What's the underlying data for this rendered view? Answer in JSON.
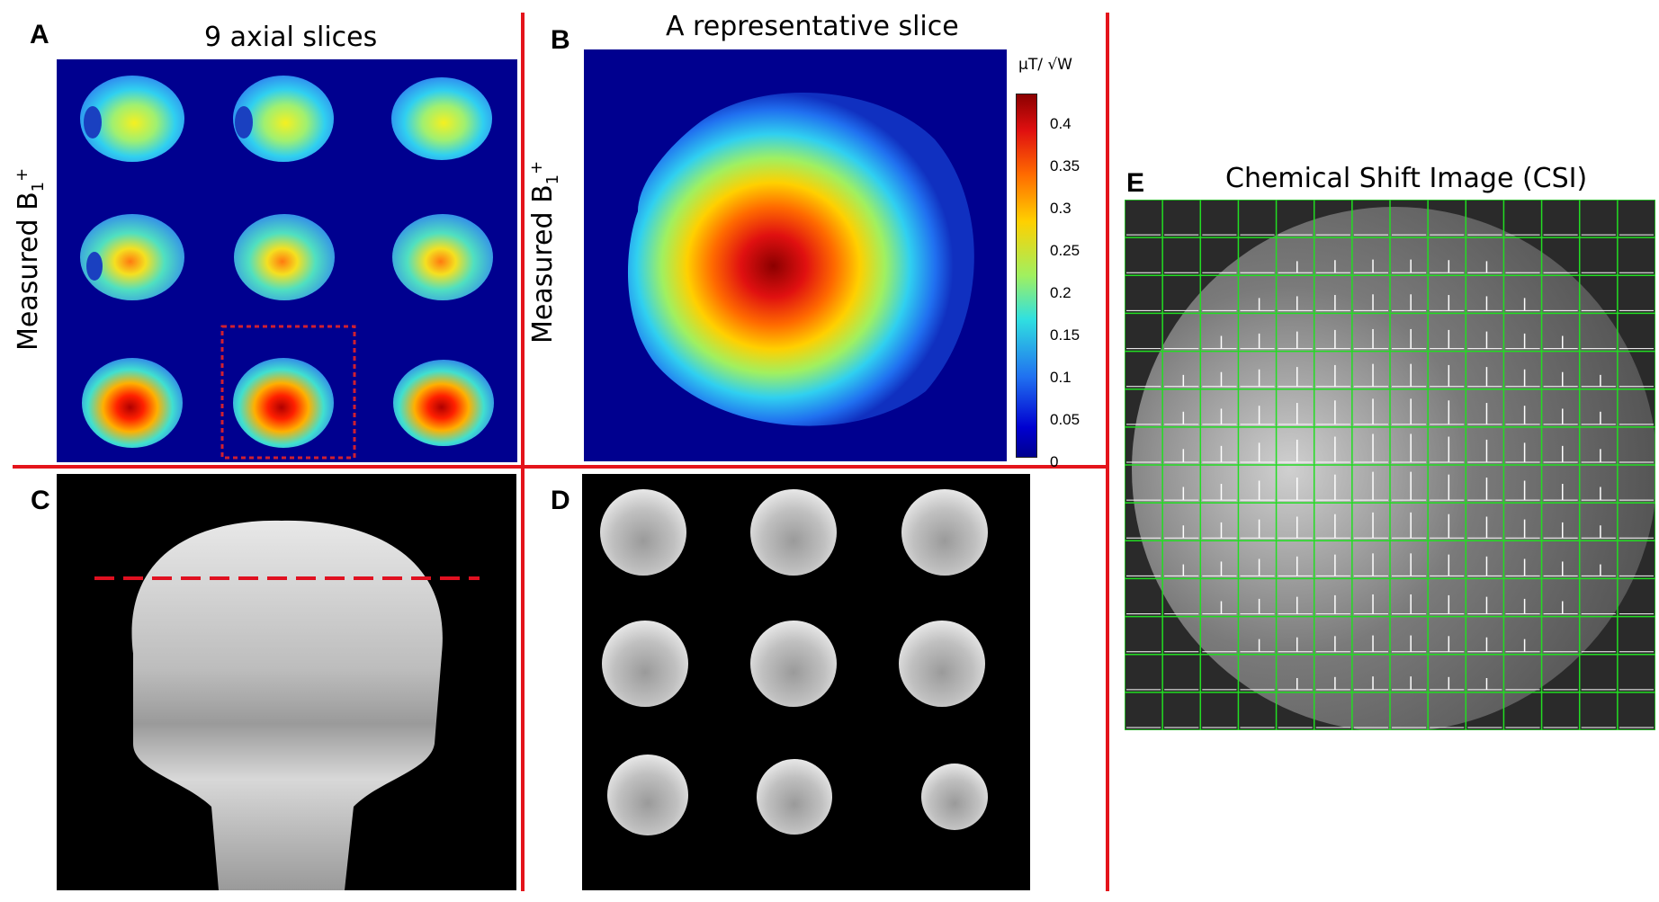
{
  "panels": {
    "a": {
      "letter": "A",
      "title": "9 axial slices",
      "ylabel_main": "Measured B",
      "ylabel_sub": "1",
      "ylabel_sup": "+"
    },
    "b": {
      "letter": "B",
      "title": "A representative slice",
      "ylabel_main": "Measured B",
      "ylabel_sub": "1",
      "ylabel_sup": "+",
      "colorbar_unit": "μT/ √W",
      "colorbar_ticks": [
        "0.4",
        "0.35",
        "0.3",
        "0.25",
        "0.2",
        "0.15",
        "0.1",
        "0.05",
        "0"
      ]
    },
    "c": {
      "letter": "C"
    },
    "d": {
      "letter": "D"
    },
    "e": {
      "letter": "E",
      "title": "Chemical Shift Image (CSI)"
    }
  },
  "colors": {
    "divider": "#e4141b",
    "grid": "#22dd22",
    "field_low": "#00008f",
    "field_high": "#8b0000"
  }
}
